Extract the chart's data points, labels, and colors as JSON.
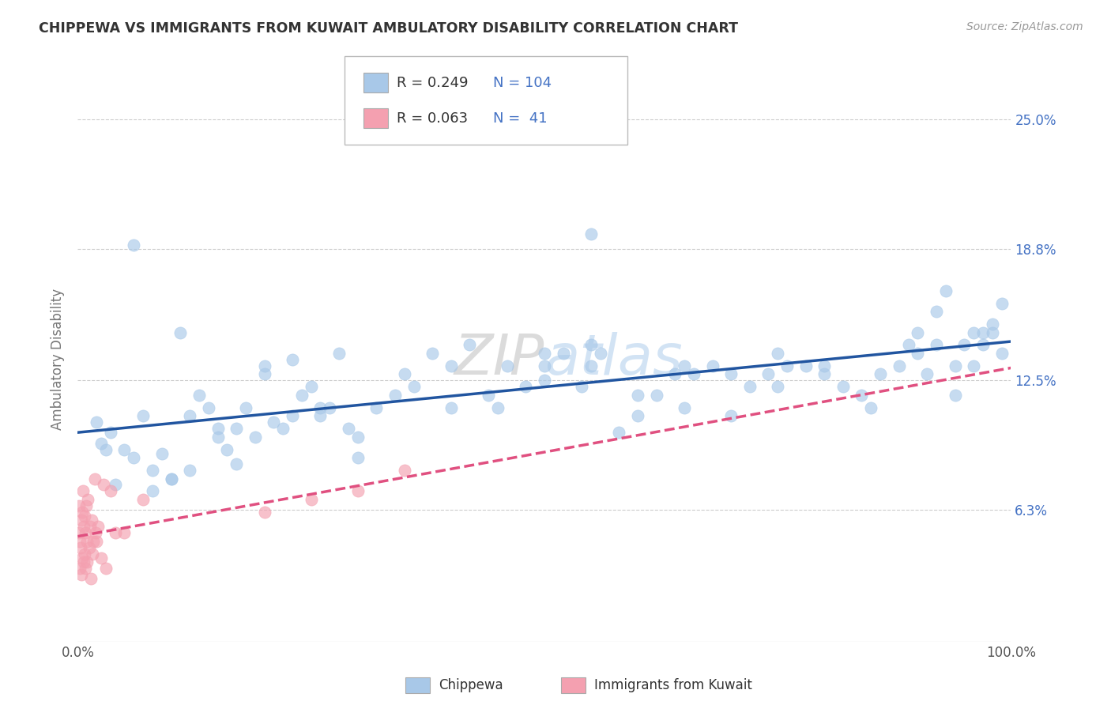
{
  "title": "CHIPPEWA VS IMMIGRANTS FROM KUWAIT AMBULATORY DISABILITY CORRELATION CHART",
  "source": "Source: ZipAtlas.com",
  "ylabel": "Ambulatory Disability",
  "legend_r1": "R = 0.249",
  "legend_n1": "N = 104",
  "legend_r2": "R = 0.063",
  "legend_n2": "N =  41",
  "chippewa_label": "Chippewa",
  "kuwait_label": "Immigrants from Kuwait",
  "blue_color": "#a8c8e8",
  "pink_color": "#f4a0b0",
  "blue_line_color": "#2155a0",
  "pink_line_color": "#e05080",
  "xmin": 0.0,
  "xmax": 100.0,
  "ymin": 0.0,
  "ymax": 27.0,
  "yticks": [
    0.0,
    6.3,
    12.5,
    18.8,
    25.0
  ],
  "ytick_labels": [
    "",
    "6.3%",
    "12.5%",
    "18.8%",
    "25.0%"
  ],
  "xtick_labels": [
    "0.0%",
    "100.0%"
  ],
  "background_color": "#ffffff",
  "grid_color": "#cccccc",
  "title_color": "#333333",
  "axis_label_color": "#777777",
  "right_tick_color": "#4472c4",
  "watermark_color": "#d8d8d8",
  "chippewa_x": [
    2.0,
    2.5,
    3.5,
    5.0,
    6.0,
    7.0,
    8.0,
    9.0,
    10.0,
    11.0,
    12.0,
    13.0,
    14.0,
    15.0,
    16.0,
    17.0,
    18.0,
    19.0,
    20.0,
    21.0,
    22.0,
    23.0,
    24.0,
    25.0,
    26.0,
    27.0,
    28.0,
    29.0,
    30.0,
    32.0,
    34.0,
    36.0,
    38.0,
    40.0,
    42.0,
    44.0,
    46.0,
    48.0,
    50.0,
    52.0,
    54.0,
    55.0,
    56.0,
    58.0,
    60.0,
    62.0,
    64.0,
    65.0,
    66.0,
    68.0,
    70.0,
    72.0,
    74.0,
    75.0,
    76.0,
    78.0,
    80.0,
    82.0,
    84.0,
    86.0,
    88.0,
    89.0,
    90.0,
    91.0,
    92.0,
    93.0,
    94.0,
    95.0,
    96.0,
    97.0,
    98.0,
    99.0,
    4.0,
    8.0,
    10.0,
    12.0,
    15.0,
    17.0,
    20.0,
    23.0,
    26.0,
    30.0,
    35.0,
    40.0,
    45.0,
    50.0,
    55.0,
    60.0,
    65.0,
    70.0,
    75.0,
    80.0,
    85.0,
    90.0,
    92.0,
    94.0,
    96.0,
    97.0,
    98.0,
    99.0,
    3.0,
    6.0,
    50.0,
    55.0
  ],
  "chippewa_y": [
    10.5,
    9.5,
    10.0,
    9.2,
    8.8,
    10.8,
    8.2,
    9.0,
    7.8,
    14.8,
    10.8,
    11.8,
    11.2,
    10.2,
    9.2,
    10.2,
    11.2,
    9.8,
    12.8,
    10.5,
    10.2,
    10.8,
    11.8,
    12.2,
    10.8,
    11.2,
    13.8,
    10.2,
    9.8,
    11.2,
    11.8,
    12.2,
    13.8,
    11.2,
    14.2,
    11.8,
    13.2,
    12.2,
    13.2,
    13.8,
    12.2,
    13.2,
    13.8,
    10.0,
    10.8,
    11.8,
    12.8,
    13.2,
    12.8,
    13.2,
    12.8,
    12.2,
    12.8,
    12.2,
    13.2,
    13.2,
    12.8,
    12.2,
    11.8,
    12.8,
    13.2,
    14.2,
    14.8,
    12.8,
    15.8,
    16.8,
    13.2,
    14.2,
    14.8,
    14.2,
    15.2,
    16.2,
    7.5,
    7.2,
    7.8,
    8.2,
    9.8,
    8.5,
    13.2,
    13.5,
    11.2,
    8.8,
    12.8,
    13.2,
    11.2,
    13.8,
    14.2,
    11.8,
    11.2,
    10.8,
    13.8,
    13.2,
    11.2,
    13.8,
    14.2,
    11.8,
    13.2,
    14.8,
    14.8,
    13.8,
    9.2,
    19.0,
    12.5,
    19.5
  ],
  "kuwait_x": [
    0.1,
    0.15,
    0.2,
    0.25,
    0.3,
    0.35,
    0.4,
    0.45,
    0.5,
    0.55,
    0.6,
    0.65,
    0.7,
    0.75,
    0.8,
    0.85,
    0.9,
    0.95,
    1.0,
    1.1,
    1.2,
    1.3,
    1.4,
    1.5,
    1.6,
    1.7,
    1.8,
    1.9,
    2.0,
    2.2,
    2.5,
    2.8,
    3.0,
    3.5,
    4.0,
    5.0,
    7.0,
    20.0,
    25.0,
    30.0,
    35.0
  ],
  "kuwait_y": [
    5.2,
    6.5,
    4.8,
    3.5,
    4.5,
    5.8,
    3.2,
    6.2,
    4.0,
    7.2,
    3.8,
    5.5,
    4.2,
    6.0,
    3.5,
    5.2,
    6.5,
    4.8,
    3.8,
    6.8,
    4.5,
    5.5,
    3.0,
    5.8,
    4.2,
    4.8,
    7.8,
    5.2,
    4.8,
    5.5,
    4.0,
    7.5,
    3.5,
    7.2,
    5.2,
    5.2,
    6.8,
    6.2,
    6.8,
    7.2,
    8.2
  ]
}
